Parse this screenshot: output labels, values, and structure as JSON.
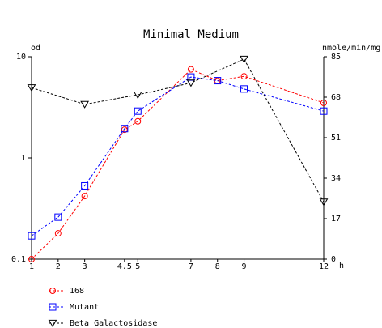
{
  "chart_data": {
    "type": "line",
    "title": "Minimal Medium",
    "y_left_label": "od",
    "y_right_label": "nmole/min/mg",
    "x_unit_label": "h",
    "x_ticks": [
      1,
      2,
      3,
      4.5,
      5,
      7,
      8,
      9,
      12
    ],
    "x_tick_labels": [
      "1",
      "2",
      "3",
      "4.5",
      "5",
      "7",
      "8",
      "9",
      "12"
    ],
    "xlim": [
      1,
      12
    ],
    "y_left_scale": "log",
    "y_left_ticks": [
      0.1,
      1,
      10
    ],
    "y_left_tick_labels": [
      "0.1",
      "1",
      "10"
    ],
    "ylim_left": [
      0.1,
      10
    ],
    "y_right_ticks": [
      0,
      17,
      34,
      51,
      68,
      85
    ],
    "y_right_tick_labels": [
      "0",
      "17",
      "34",
      "51",
      "68",
      "85"
    ],
    "ylim_right": [
      0,
      85
    ],
    "grid": false,
    "legend_position": "bottom-left",
    "series": [
      {
        "name": "168",
        "axis": "left",
        "marker": "circle",
        "color": "#ff0000",
        "x": [
          1,
          2,
          3,
          4.5,
          5,
          7,
          8,
          9,
          12
        ],
        "values": [
          0.1,
          0.18,
          0.42,
          1.9,
          2.3,
          7.5,
          5.8,
          6.4,
          3.5
        ]
      },
      {
        "name": "Mutant",
        "axis": "left",
        "marker": "square",
        "color": "#0000ff",
        "x": [
          1,
          2,
          3,
          4.5,
          5,
          7,
          8,
          9,
          12
        ],
        "values": [
          0.17,
          0.26,
          0.53,
          1.95,
          2.9,
          6.3,
          5.8,
          4.8,
          2.9
        ]
      },
      {
        "name": "Beta Galactosidase",
        "axis": "right",
        "marker": "triangle-down",
        "color": "#000000",
        "x": [
          1,
          3,
          5,
          7,
          9,
          12
        ],
        "values": [
          72,
          65,
          69,
          74,
          84,
          24
        ]
      }
    ]
  }
}
